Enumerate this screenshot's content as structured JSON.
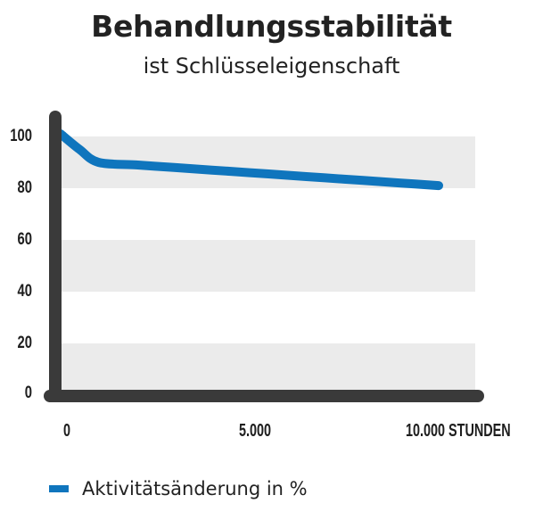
{
  "header": {
    "title": "Behandlungsstabilität",
    "subtitle": "ist Schlüsseleigenschaft"
  },
  "colors": {
    "series": "#0f75bd",
    "axis": "#3a3a3a",
    "band": "#ebebeb"
  },
  "axes": {
    "y_ticks": [
      "100",
      "80",
      "60",
      "40",
      "20",
      "0"
    ],
    "x_ticks": [
      "0",
      "5.000",
      "10.000 STUNDEN"
    ]
  },
  "legend": {
    "label": "Aktivitätsänderung in %"
  },
  "chart_data": {
    "type": "line",
    "title": "Behandlungsstabilität",
    "subtitle": "ist Schlüsseleigenschaft",
    "xlabel": "Stunden",
    "ylabel": "",
    "x_tick_labels": [
      "0",
      "5.000",
      "10.000 STUNDEN"
    ],
    "y_tick_labels": [
      "0",
      "20",
      "40",
      "60",
      "80",
      "100"
    ],
    "xlim": [
      0,
      10000
    ],
    "ylim": [
      0,
      100
    ],
    "grid": "alternating horizontal bands",
    "legend_position": "bottom-left",
    "series": [
      {
        "name": "Aktivitätsänderung in %",
        "color": "#0f75bd",
        "x": [
          0,
          500,
          1000,
          2000,
          3000,
          4000,
          5000,
          6000,
          7000,
          8000,
          9000,
          10000
        ],
        "values": [
          101,
          95,
          90,
          89,
          88,
          87,
          86,
          85,
          84,
          83,
          82,
          81
        ]
      }
    ]
  }
}
